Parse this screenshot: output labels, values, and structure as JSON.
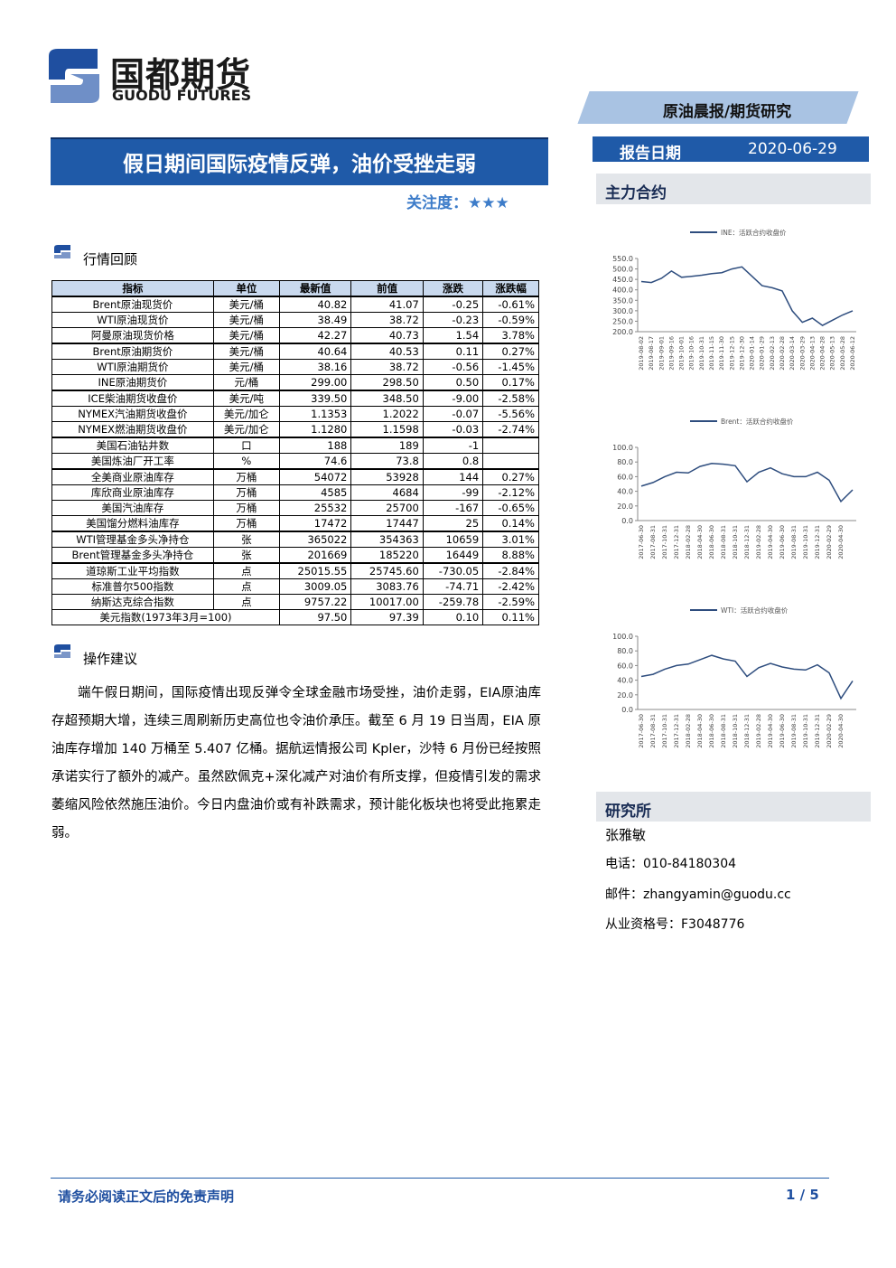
{
  "header": {
    "logo_cn": "国都期货",
    "logo_en": "GUODU FUTURES",
    "category": "原油晨报/期货研究",
    "date_label": "报告日期",
    "date": "2020-06-29",
    "title": "假日期间国际疫情反弹，油价受挫走弱",
    "attention": "关注度：",
    "stars": "★★★"
  },
  "market": {
    "heading": "行情回顾",
    "table": {
      "columns": [
        "指标",
        "单位",
        "最新值",
        "前值",
        "涨跌",
        "涨跌幅"
      ],
      "groups": [
        [
          [
            "Brent原油现货价",
            "美元/桶",
            "40.82",
            "41.07",
            "-0.25",
            "-0.61%"
          ],
          [
            "WTI原油现货价",
            "美元/桶",
            "38.49",
            "38.72",
            "-0.23",
            "-0.59%"
          ],
          [
            "阿曼原油现货价格",
            "美元/桶",
            "42.27",
            "40.73",
            "1.54",
            "3.78%"
          ]
        ],
        [
          [
            "Brent原油期货价",
            "美元/桶",
            "40.64",
            "40.53",
            "0.11",
            "0.27%"
          ],
          [
            "WTI原油期货价",
            "美元/桶",
            "38.16",
            "38.72",
            "-0.56",
            "-1.45%"
          ],
          [
            "INE原油期货价",
            "元/桶",
            "299.00",
            "298.50",
            "0.50",
            "0.17%"
          ]
        ],
        [
          [
            "ICE柴油期货收盘价",
            "美元/吨",
            "339.50",
            "348.50",
            "-9.00",
            "-2.58%"
          ],
          [
            "NYMEX汽油期货收盘价",
            "美元/加仑",
            "1.1353",
            "1.2022",
            "-0.07",
            "-5.56%"
          ],
          [
            "NYMEX燃油期货收盘价",
            "美元/加仑",
            "1.1280",
            "1.1598",
            "-0.03",
            "-2.74%"
          ]
        ],
        [
          [
            "美国石油钻井数",
            "口",
            "188",
            "189",
            "-1",
            null
          ],
          [
            "美国炼油厂开工率",
            "%",
            "74.6",
            "73.8",
            "0.8",
            null
          ]
        ],
        [
          [
            "全美商业原油库存",
            "万桶",
            "54072",
            "53928",
            "144",
            "0.27%"
          ],
          [
            "库欣商业原油库存",
            "万桶",
            "4585",
            "4684",
            "-99",
            "-2.12%"
          ],
          [
            "美国汽油库存",
            "万桶",
            "25532",
            "25700",
            "-167",
            "-0.65%"
          ],
          [
            "美国馏分燃料油库存",
            "万桶",
            "17472",
            "17447",
            "25",
            "0.14%"
          ]
        ],
        [
          [
            "WTI管理基金多头净持仓",
            "张",
            "365022",
            "354363",
            "10659",
            "3.01%"
          ],
          [
            "Brent管理基金多头净持仓",
            "张",
            "201669",
            "185220",
            "16449",
            "8.88%"
          ]
        ],
        [
          [
            "道琼斯工业平均指数",
            "点",
            "25015.55",
            "25745.60",
            "-730.05",
            "-2.84%"
          ],
          [
            "标准普尔500指数",
            "点",
            "3009.05",
            "3083.76",
            "-74.71",
            "-2.42%"
          ],
          [
            "纳斯达克综合指数",
            "点",
            "9757.22",
            "10017.00",
            "-259.78",
            "-2.59%"
          ],
          [
            "美元指数(1973年3月=100)",
            null,
            "97.50",
            "97.39",
            "0.10",
            "0.11%"
          ]
        ]
      ]
    }
  },
  "advice": {
    "heading": "操作建议",
    "paragraph": "端午假日期间，国际疫情出现反弹令全球金融市场受挫，油价走弱，EIA原油库存超预期大增，连续三周刷新历史高位也令油价承压。截至 6 月 19 日当周，EIA 原油库存增加 140 万桶至 5.407 亿桶。据航运情报公司 Kpler，沙特 6 月份已经按照承诺实行了额外的减产。虽然欧佩克+深化减产对油价有所支撑，但疫情引发的需求萎缩风险依然施压油价。今日内盘油价或有补跌需求，预计能化板块也将受此拖累走弱。"
  },
  "sidebar": {
    "heading": "主力合约"
  },
  "chart_data": [
    {
      "type": "line",
      "categories": [
        "2019-08-02",
        "2019-08-17",
        "2019-09-01",
        "2019-09-16",
        "2019-10-01",
        "2019-10-16",
        "2019-10-31",
        "2019-11-15",
        "2019-11-30",
        "2019-12-15",
        "2019-12-30",
        "2020-01-14",
        "2020-01-29",
        "2020-02-13",
        "2020-02-28",
        "2020-03-14",
        "2020-03-29",
        "2020-04-13",
        "2020-04-28",
        "2020-05-13",
        "2020-05-28",
        "2020-06-12"
      ],
      "series": [
        {
          "name": "INE：活跃合约收盘价",
          "color": "#2e4d7e",
          "values": [
            440,
            435,
            455,
            490,
            460,
            465,
            470,
            478,
            482,
            500,
            510,
            465,
            420,
            410,
            395,
            300,
            245,
            265,
            230,
            255,
            280,
            300
          ]
        }
      ],
      "ylim": [
        200,
        550
      ],
      "yticks": [
        {
          "value": 200,
          "label": "200.0"
        },
        {
          "value": 250,
          "label": "250.0"
        },
        {
          "value": 300,
          "label": "300.0"
        },
        {
          "value": 350,
          "label": "350.0"
        },
        {
          "value": 400,
          "label": "400.0"
        },
        {
          "value": 450,
          "label": "450.0"
        },
        {
          "value": 500,
          "label": "500.0"
        },
        {
          "value": 550,
          "label": "550.0"
        }
      ]
    },
    {
      "type": "line",
      "categories": [
        "2017-06-30",
        "2017-08-31",
        "2017-10-31",
        "2017-12-31",
        "2018-02-28",
        "2018-04-30",
        "2018-06-30",
        "2018-08-31",
        "2018-10-31",
        "2018-12-31",
        "2019-02-28",
        "2019-04-30",
        "2019-06-30",
        "2019-08-31",
        "2019-10-31",
        "2019-12-31",
        "2020-02-29",
        "2020-04-30",
        null
      ],
      "series": [
        {
          "name": "Brent：活跃合约收盘价",
          "color": "#2e4d7e",
          "values": [
            47,
            52,
            60,
            66,
            65,
            74,
            78,
            77,
            75,
            53,
            66,
            72,
            64,
            60,
            60,
            66,
            55,
            26,
            42
          ]
        }
      ],
      "ylim": [
        0,
        100
      ],
      "yticks": [
        {
          "value": 0,
          "label": "0.0"
        },
        {
          "value": 20,
          "label": "20.0"
        },
        {
          "value": 40,
          "label": "40.0"
        },
        {
          "value": 60,
          "label": "60.0"
        },
        {
          "value": 80,
          "label": "80.0"
        },
        {
          "value": 100,
          "label": "100.0"
        }
      ]
    },
    {
      "type": "line",
      "categories": [
        "2017-06-30",
        "2017-08-31",
        "2017-10-31",
        "2017-12-31",
        "2018-02-28",
        "2018-04-30",
        "2018-06-30",
        "2018-08-31",
        "2018-10-31",
        "2018-12-31",
        "2019-02-28",
        "2019-04-30",
        "2019-06-30",
        "2019-08-31",
        "2019-10-31",
        "2019-12-31",
        "2020-02-29",
        "2020-04-30",
        null
      ],
      "series": [
        {
          "name": "WTI：活跃合约收盘价",
          "color": "#2e4d7e",
          "values": [
            45,
            48,
            55,
            60,
            62,
            68,
            74,
            69,
            66,
            45,
            57,
            63,
            58,
            55,
            54,
            61,
            50,
            15,
            39
          ]
        }
      ],
      "ylim": [
        0,
        100
      ],
      "yticks": [
        {
          "value": 0,
          "label": "0.0"
        },
        {
          "value": 20,
          "label": "20.0"
        },
        {
          "value": 40,
          "label": "40.0"
        },
        {
          "value": 60,
          "label": "60.0"
        },
        {
          "value": 80,
          "label": "80.0"
        },
        {
          "value": 100,
          "label": "100.0"
        }
      ]
    }
  ],
  "institute": {
    "heading": "研究所",
    "name": "张雅敏",
    "phone": "电话：010-84180304",
    "email": "邮件：zhangyamin@guodu.cc",
    "license": "从业资格号：F3048776"
  },
  "footer": {
    "disclaimer": "请务必阅读正文后的免责声明",
    "page": "1 / 5"
  }
}
